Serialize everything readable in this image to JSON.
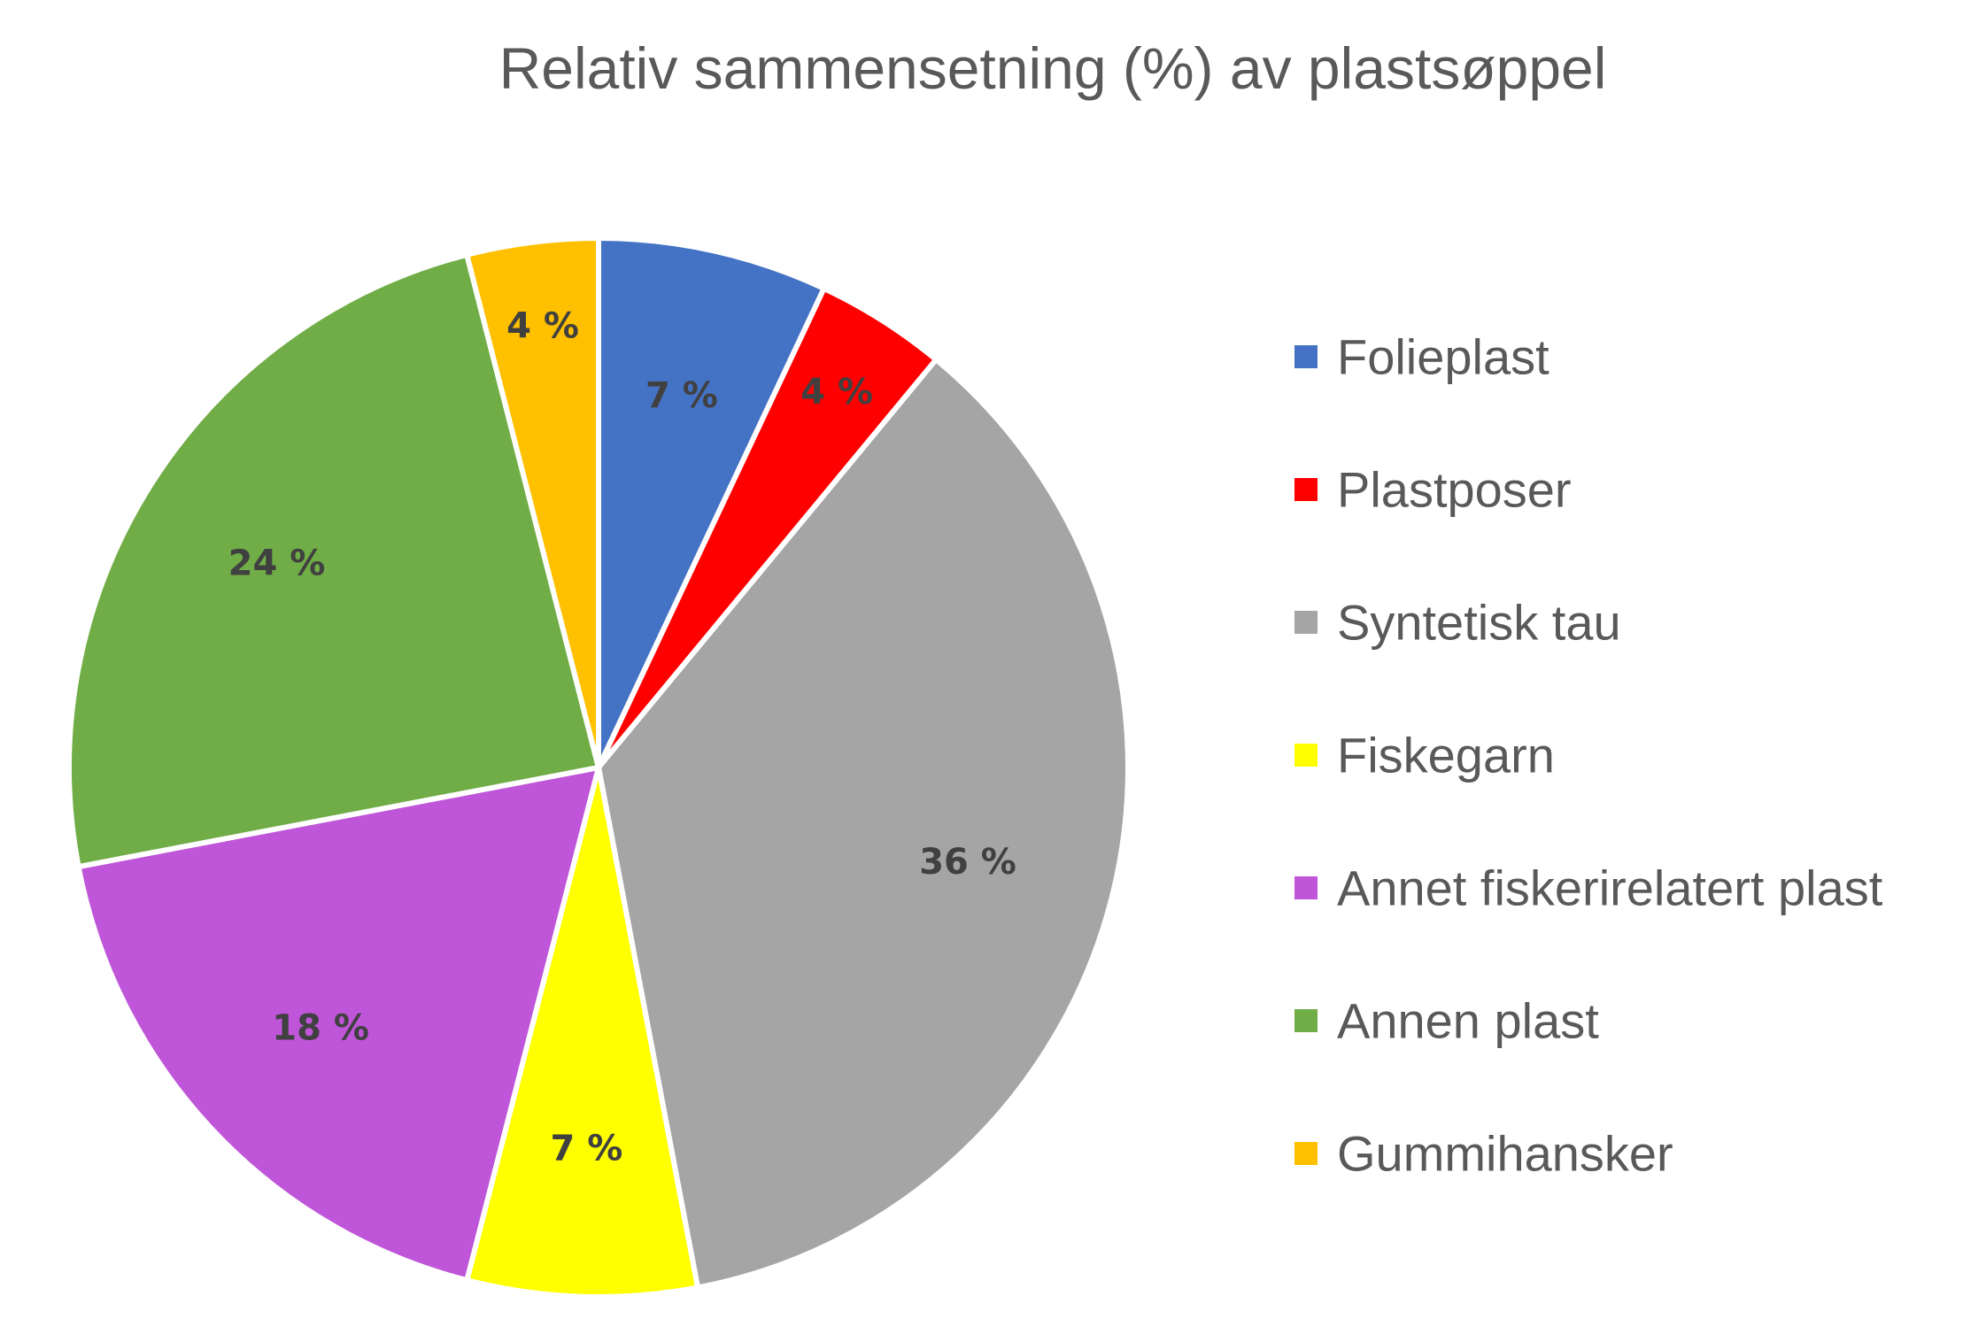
{
  "chart_data": {
    "type": "pie",
    "title": "Relativ sammensetning (%) av plastsøppel",
    "unit": "%",
    "start_angle": "12 o'clock",
    "direction": "clockwise",
    "legend_position": "right",
    "slices": [
      {
        "name": "Folieplast",
        "value": 7,
        "label": "7 %",
        "color": "#4472C4"
      },
      {
        "name": "Plastposer",
        "value": 4,
        "label": "4 %",
        "color": "#FF0000"
      },
      {
        "name": "Syntetisk tau",
        "value": 36,
        "label": "36 %",
        "color": "#A5A5A5"
      },
      {
        "name": "Fiskegarn",
        "value": 7,
        "label": "7 %",
        "color": "#FFFF00"
      },
      {
        "name": "Annet fiskerirelatert plast",
        "value": 18,
        "label": "18 %",
        "color": "#BF55D8"
      },
      {
        "name": "Annen plast",
        "value": 24,
        "label": "24 %",
        "color": "#70AD47"
      },
      {
        "name": "Gummihansker",
        "value": 4,
        "label": "4 %",
        "color": "#FFC000"
      }
    ]
  }
}
